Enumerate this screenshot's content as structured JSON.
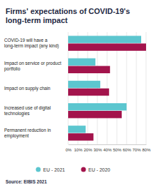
{
  "chart_data": {
    "type": "bar",
    "orientation": "horizontal",
    "title": "Firms' expectations of COVID-19's long-term impact",
    "categories": [
      "COVID-19 will have a long-term impact (any kind)",
      "Impact on service or product portfolio",
      "Impact on supply chain",
      "Increased use of digital technologies",
      "Permanent reduction in employment"
    ],
    "series": [
      {
        "name": "EU - 2021",
        "color": "#5cc6cf",
        "values": [
          75,
          28,
          33,
          60,
          18
        ]
      },
      {
        "name": "EU - 2020",
        "color": "#a3144c",
        "values": [
          80,
          43,
          42,
          55,
          26
        ]
      }
    ],
    "xlim": [
      0,
      80
    ],
    "xticks": [
      {
        "value": 0,
        "label": "0%"
      },
      {
        "value": 10,
        "label": "10%"
      },
      {
        "value": 20,
        "label": "20%"
      },
      {
        "value": 30,
        "label": "30%"
      },
      {
        "value": 40,
        "label": "40%"
      },
      {
        "value": 50,
        "label": "50%"
      },
      {
        "value": 60,
        "label": "60%"
      },
      {
        "value": 70,
        "label": "70%"
      },
      {
        "value": 80,
        "label": "80%"
      }
    ],
    "grid": true,
    "legend": "bottom",
    "annotations": [
      "Source: EIBIS 2021"
    ]
  }
}
